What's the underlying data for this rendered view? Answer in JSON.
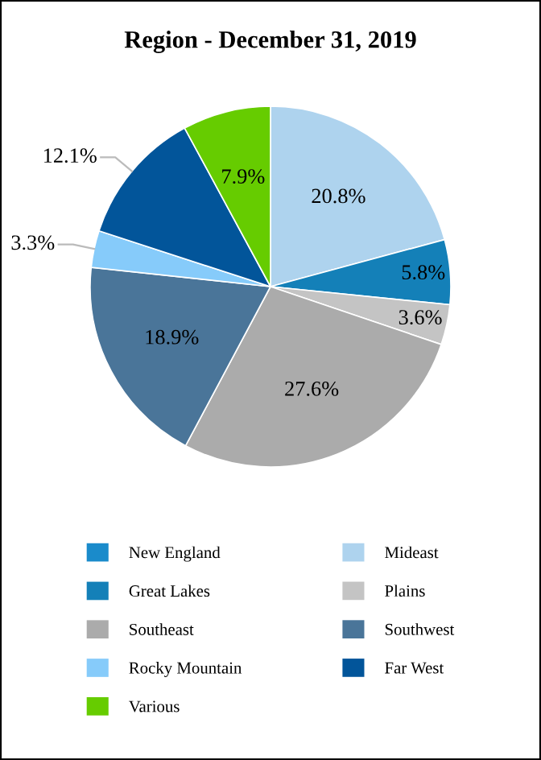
{
  "chart_data": {
    "type": "pie",
    "title": "Region - December 31, 2019",
    "categories": [
      "New England",
      "Mideast",
      "Great Lakes",
      "Plains",
      "Southeast",
      "Southwest",
      "Rocky Mountain",
      "Far West",
      "Various"
    ],
    "values": [
      0,
      20.8,
      5.8,
      3.6,
      27.6,
      18.9,
      3.3,
      12.1,
      7.9
    ],
    "value_labels": [
      null,
      "20.8%",
      "5.8%",
      "3.6%",
      "27.6%",
      "18.9%",
      "3.3%",
      "12.1%",
      "7.9%"
    ],
    "colors": [
      "#1a8bcb",
      "#aed3ee",
      "#1480b8",
      "#c4c4c4",
      "#ababab",
      "#4a7599",
      "#86cbfa",
      "#02559a",
      "#66cc00"
    ],
    "legend": "bottom"
  }
}
